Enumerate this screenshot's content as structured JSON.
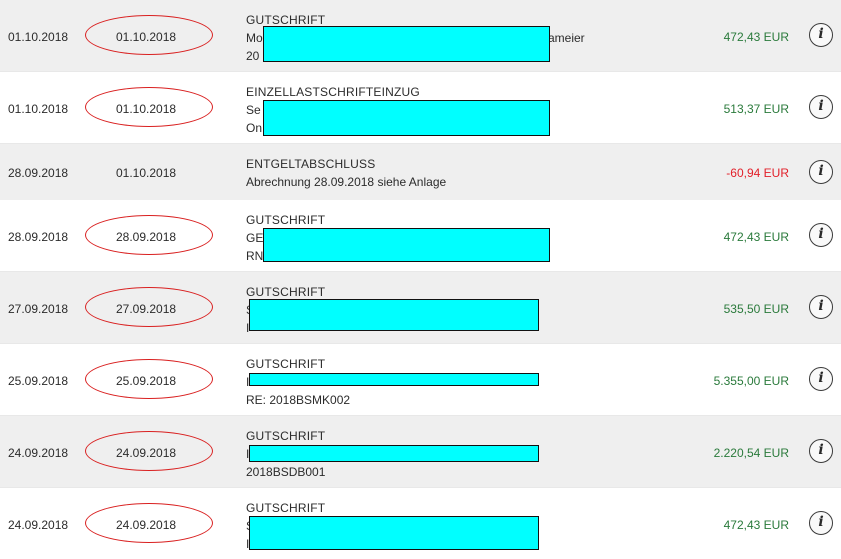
{
  "colors": {
    "positive": "#2a7a3b",
    "negative": "#e2202a",
    "redaction": "#00ffff",
    "highlight_ellipse": "#d92020",
    "row_alt": "#efefef"
  },
  "transactions": [
    {
      "booking_date": "01.10.2018",
      "value_date": "01.10.2018",
      "highlighted": true,
      "type": "GUTSCHRIFT",
      "line2_prefix": "Mo",
      "line2_suffix": "ameier",
      "line3_prefix": "20",
      "line3": "",
      "amount": "472,43 EUR",
      "sign": "positive",
      "info_icon": "i"
    },
    {
      "booking_date": "01.10.2018",
      "value_date": "01.10.2018",
      "highlighted": true,
      "type": "EINZELLASTSCHRIFTEINZUG",
      "line2_prefix": "Se",
      "line2_suffix": "",
      "line3_prefix": "On",
      "line3": "",
      "amount": "513,37 EUR",
      "sign": "positive",
      "info_icon": "i"
    },
    {
      "booking_date": "28.09.2018",
      "value_date": "01.10.2018",
      "highlighted": false,
      "type": "ENTGELTABSCHLUSS",
      "line2_prefix": "Abrechnung 28.09.2018 siehe Anlage",
      "line2_suffix": "",
      "line3_prefix": "",
      "line3": "",
      "amount": "-60,94 EUR",
      "sign": "negative",
      "info_icon": "i"
    },
    {
      "booking_date": "28.09.2018",
      "value_date": "28.09.2018",
      "highlighted": true,
      "type": "GUTSCHRIFT",
      "line2_prefix": "GE",
      "line2_suffix": "",
      "line3_prefix": "RN",
      "line3": "",
      "amount": "472,43 EUR",
      "sign": "positive",
      "info_icon": "i"
    },
    {
      "booking_date": "27.09.2018",
      "value_date": "27.09.2018",
      "highlighted": true,
      "type": "GUTSCHRIFT",
      "line2_prefix": "S",
      "line2_suffix": "",
      "line3_prefix": "I",
      "line3": "",
      "amount": "535,50 EUR",
      "sign": "positive",
      "info_icon": "i"
    },
    {
      "booking_date": "25.09.2018",
      "value_date": "25.09.2018",
      "highlighted": true,
      "type": "GUTSCHRIFT",
      "line2_prefix": "I",
      "line2_suffix": "",
      "line3_prefix": "",
      "line3": "RE: 2018BSMK002",
      "amount": "5.355,00 EUR",
      "sign": "positive",
      "info_icon": "i"
    },
    {
      "booking_date": "24.09.2018",
      "value_date": "24.09.2018",
      "highlighted": true,
      "type": "GUTSCHRIFT",
      "line2_prefix": "I",
      "line2_suffix": "",
      "line3_prefix": "",
      "line3": "2018BSDB001",
      "amount": "2.220,54 EUR",
      "sign": "positive",
      "info_icon": "i"
    },
    {
      "booking_date": "24.09.2018",
      "value_date": "24.09.2018",
      "highlighted": true,
      "type": "GUTSCHRIFT",
      "line2_prefix": "S",
      "line2_suffix": "",
      "line3_prefix": "I",
      "line3": "",
      "amount": "472,43 EUR",
      "sign": "positive",
      "info_icon": "i"
    }
  ]
}
